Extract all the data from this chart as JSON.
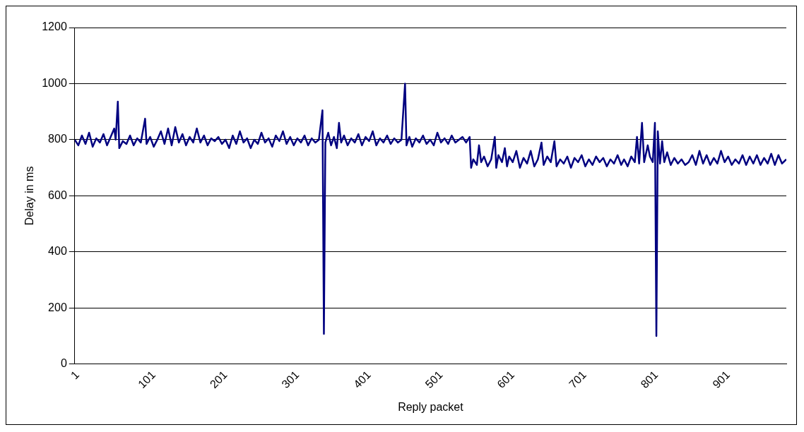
{
  "chart_data": {
    "type": "line",
    "xlabel": "Reply packet",
    "ylabel": "Delay in ms",
    "x": [
      1,
      6,
      11,
      16,
      21,
      26,
      31,
      36,
      41,
      46,
      51,
      56,
      58,
      61,
      63,
      68,
      73,
      78,
      83,
      88,
      93,
      99,
      101,
      106,
      111,
      116,
      121,
      126,
      131,
      136,
      141,
      146,
      151,
      156,
      161,
      166,
      171,
      176,
      181,
      186,
      191,
      196,
      201,
      206,
      211,
      216,
      221,
      226,
      231,
      236,
      241,
      246,
      251,
      256,
      261,
      266,
      271,
      276,
      281,
      286,
      291,
      296,
      301,
      306,
      311,
      316,
      321,
      326,
      331,
      336,
      341,
      346,
      348,
      350,
      354,
      358,
      362,
      366,
      369,
      372,
      376,
      381,
      386,
      391,
      396,
      401,
      406,
      411,
      416,
      421,
      426,
      431,
      436,
      441,
      446,
      451,
      456,
      461,
      463,
      467,
      471,
      476,
      481,
      486,
      491,
      496,
      501,
      506,
      511,
      516,
      521,
      526,
      531,
      536,
      541,
      546,
      551,
      553,
      556,
      561,
      564,
      567,
      571,
      576,
      581,
      586,
      588,
      591,
      596,
      600,
      603,
      606,
      611,
      616,
      621,
      626,
      631,
      636,
      641,
      646,
      651,
      654,
      659,
      664,
      669,
      672,
      677,
      682,
      687,
      692,
      697,
      702,
      707,
      712,
      717,
      722,
      727,
      732,
      737,
      742,
      747,
      752,
      757,
      762,
      766,
      771,
      776,
      781,
      784,
      787,
      791,
      794,
      799,
      802,
      806,
      809,
      811,
      813,
      816,
      819,
      822,
      826,
      831,
      836,
      841,
      846,
      851,
      856,
      861,
      866,
      871,
      876,
      881,
      886,
      891,
      896,
      901,
      906,
      911,
      916,
      921,
      926,
      931,
      936,
      941,
      946,
      951,
      956,
      961,
      966,
      971,
      976,
      981,
      986,
      992
    ],
    "series": [
      {
        "color": "#000080",
        "values": [
          800,
          780,
          815,
          785,
          825,
          775,
          805,
          790,
          820,
          780,
          810,
          840,
          800,
          936,
          770,
          795,
          785,
          815,
          780,
          805,
          790,
          875,
          785,
          810,
          775,
          800,
          830,
          785,
          840,
          780,
          845,
          790,
          820,
          780,
          810,
          790,
          840,
          790,
          815,
          780,
          805,
          795,
          810,
          785,
          800,
          770,
          815,
          785,
          830,
          790,
          805,
          770,
          800,
          785,
          825,
          790,
          805,
          775,
          815,
          795,
          830,
          785,
          810,
          780,
          805,
          790,
          815,
          780,
          805,
          790,
          800,
          905,
          108,
          790,
          825,
          780,
          810,
          770,
          860,
          790,
          815,
          780,
          805,
          790,
          820,
          780,
          810,
          795,
          830,
          780,
          805,
          790,
          815,
          785,
          805,
          790,
          800,
          1000,
          780,
          810,
          775,
          805,
          790,
          815,
          785,
          800,
          780,
          825,
          790,
          805,
          785,
          815,
          790,
          800,
          810,
          790,
          810,
          700,
          730,
          710,
          780,
          720,
          740,
          705,
          730,
          810,
          700,
          745,
          720,
          770,
          705,
          740,
          720,
          760,
          700,
          735,
          715,
          760,
          705,
          730,
          790,
          710,
          740,
          720,
          795,
          705,
          730,
          715,
          740,
          700,
          735,
          720,
          745,
          705,
          730,
          710,
          740,
          720,
          735,
          705,
          730,
          715,
          745,
          710,
          730,
          705,
          740,
          720,
          810,
          715,
          860,
          720,
          780,
          740,
          720,
          860,
          100,
          830,
          715,
          795,
          720,
          755,
          710,
          735,
          715,
          730,
          710,
          720,
          745,
          710,
          760,
          715,
          745,
          710,
          735,
          715,
          760,
          720,
          740,
          710,
          730,
          715,
          745,
          710,
          740,
          715,
          745,
          710,
          735,
          715,
          750,
          710,
          745,
          715,
          730
        ]
      }
    ],
    "xlim": [
      1,
      992
    ],
    "xticks": [
      1,
      101,
      201,
      301,
      401,
      501,
      601,
      701,
      801,
      901
    ],
    "ylim": [
      0,
      1200
    ],
    "yticks": [
      0,
      200,
      400,
      600,
      800,
      1000,
      1200
    ],
    "grid": "y",
    "legend": false,
    "marker": "none",
    "line_style": "solid"
  }
}
